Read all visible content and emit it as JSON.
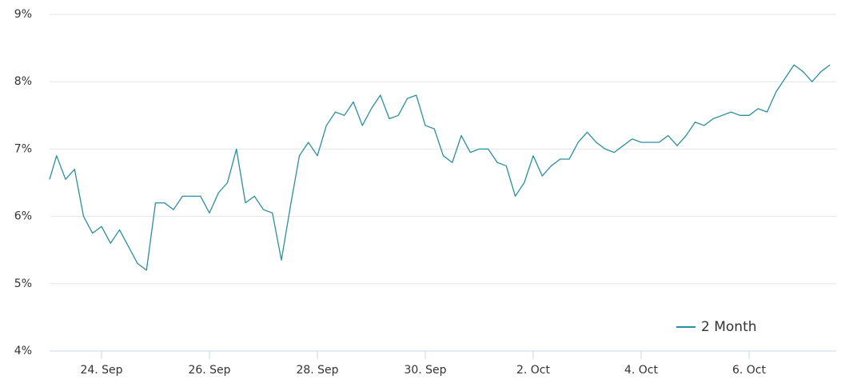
{
  "chart_data": {
    "type": "line",
    "categories": [
      null,
      null,
      null,
      null,
      null,
      null,
      "24. Sep",
      null,
      null,
      null,
      null,
      null,
      null,
      null,
      null,
      null,
      null,
      null,
      "26. Sep",
      null,
      null,
      null,
      null,
      null,
      null,
      null,
      null,
      null,
      null,
      null,
      "28. Sep",
      null,
      null,
      null,
      null,
      null,
      null,
      null,
      null,
      null,
      null,
      null,
      "30. Sep",
      null,
      null,
      null,
      null,
      null,
      null,
      null,
      null,
      null,
      null,
      null,
      "2. Oct",
      null,
      null,
      null,
      null,
      null,
      null,
      null,
      null,
      null,
      null,
      null,
      "4. Oct",
      null,
      null,
      null,
      null,
      null,
      null,
      null,
      null,
      null,
      null,
      null,
      "6. Oct",
      null,
      null,
      null,
      null,
      null,
      null,
      null,
      null,
      null
    ],
    "series": [
      {
        "name": "2 Month",
        "color": "#2a8f9e",
        "values": [
          6.55,
          6.9,
          6.55,
          6.7,
          6.0,
          5.75,
          5.85,
          5.6,
          5.8,
          5.55,
          5.3,
          5.2,
          6.2,
          6.2,
          6.1,
          6.3,
          6.3,
          6.3,
          6.05,
          6.35,
          6.5,
          7.0,
          6.2,
          6.3,
          6.1,
          6.05,
          5.35,
          6.15,
          6.9,
          7.1,
          6.9,
          7.35,
          7.55,
          7.5,
          7.7,
          7.35,
          7.6,
          7.8,
          7.45,
          7.5,
          7.75,
          7.8,
          7.35,
          7.3,
          6.9,
          6.8,
          7.2,
          6.95,
          7.0,
          7.0,
          6.8,
          6.75,
          6.3,
          6.5,
          6.9,
          6.6,
          6.75,
          6.85,
          6.85,
          7.1,
          7.25,
          7.1,
          7.0,
          6.95,
          7.05,
          7.15,
          7.1,
          7.1,
          7.1,
          7.2,
          7.05,
          7.2,
          7.4,
          7.35,
          7.45,
          7.5,
          7.55,
          7.5,
          7.5,
          7.6,
          7.55,
          7.85,
          8.05,
          8.25,
          8.15,
          8.0,
          8.15,
          8.25
        ]
      }
    ],
    "ylim": [
      4,
      9
    ],
    "yticks": [
      {
        "value": 4,
        "label": "4%"
      },
      {
        "value": 5,
        "label": "5%"
      },
      {
        "value": 6,
        "label": "6%"
      },
      {
        "value": 7,
        "label": "7%"
      },
      {
        "value": 8,
        "label": "8%"
      },
      {
        "value": 9,
        "label": "9%"
      }
    ],
    "grid": true,
    "legend": "bottom-right"
  }
}
